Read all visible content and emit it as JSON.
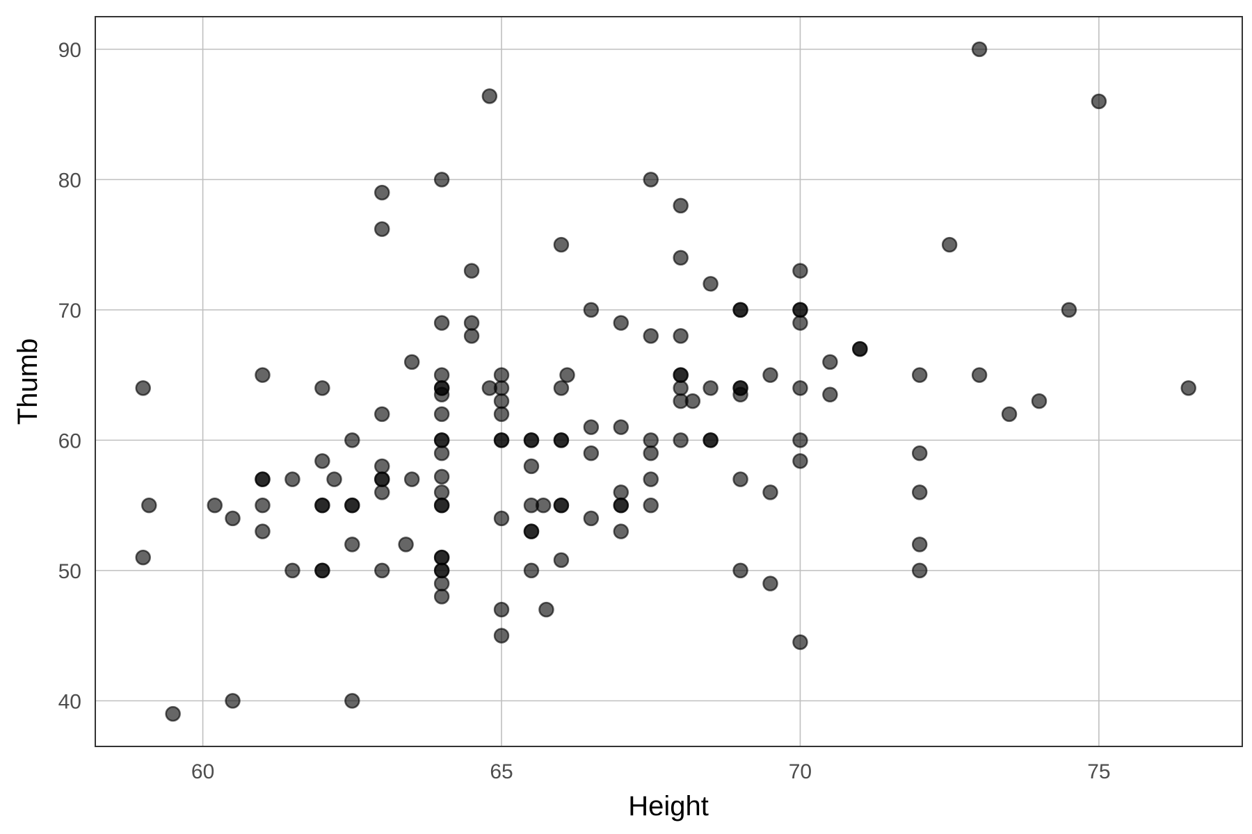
{
  "chart_data": {
    "type": "scatter",
    "xlabel": "Height",
    "ylabel": "Thumb",
    "xlim": [
      58.2,
      77.4
    ],
    "ylim": [
      36.5,
      92.5
    ],
    "xticks": [
      60,
      65,
      70,
      75
    ],
    "yticks": [
      40,
      50,
      60,
      70,
      80,
      90
    ],
    "x_tick_labels": [
      "60",
      "65",
      "70",
      "75"
    ],
    "y_tick_labels": [
      "40",
      "50",
      "60",
      "70",
      "80",
      "90"
    ],
    "grid": true,
    "legend": "none",
    "point_color": "#000000",
    "point_alpha": 0.6,
    "points": [
      [
        59,
        64
      ],
      [
        59,
        51
      ],
      [
        59.1,
        55
      ],
      [
        59.5,
        39
      ],
      [
        60.2,
        55
      ],
      [
        60.5,
        54
      ],
      [
        60.5,
        40
      ],
      [
        61,
        65
      ],
      [
        61,
        57
      ],
      [
        61,
        57
      ],
      [
        61,
        55
      ],
      [
        61,
        53
      ],
      [
        61.5,
        57
      ],
      [
        61.5,
        50
      ],
      [
        62,
        64
      ],
      [
        62,
        58.4
      ],
      [
        62,
        55
      ],
      [
        62,
        55
      ],
      [
        62,
        50
      ],
      [
        62,
        50
      ],
      [
        62.2,
        57
      ],
      [
        62.5,
        60
      ],
      [
        62.5,
        55
      ],
      [
        62.5,
        55
      ],
      [
        62.5,
        52
      ],
      [
        62.5,
        40
      ],
      [
        63,
        79
      ],
      [
        63,
        76.2
      ],
      [
        63,
        62
      ],
      [
        63,
        58
      ],
      [
        63,
        57
      ],
      [
        63,
        57
      ],
      [
        63,
        56
      ],
      [
        63,
        50
      ],
      [
        63.4,
        52
      ],
      [
        63.5,
        66
      ],
      [
        63.5,
        57
      ],
      [
        64,
        80
      ],
      [
        64,
        69
      ],
      [
        64,
        65
      ],
      [
        64,
        64
      ],
      [
        64,
        64
      ],
      [
        64,
        63.5
      ],
      [
        64,
        62
      ],
      [
        64,
        60
      ],
      [
        64,
        60
      ],
      [
        64,
        59
      ],
      [
        64,
        57.2
      ],
      [
        64,
        56
      ],
      [
        64,
        55
      ],
      [
        64,
        55
      ],
      [
        64,
        51
      ],
      [
        64,
        51
      ],
      [
        64,
        50
      ],
      [
        64,
        50
      ],
      [
        64,
        49
      ],
      [
        64,
        48
      ],
      [
        64.5,
        73
      ],
      [
        64.5,
        69
      ],
      [
        64.5,
        68
      ],
      [
        64.8,
        86.4
      ],
      [
        64.8,
        64
      ],
      [
        65,
        65
      ],
      [
        65,
        64
      ],
      [
        65,
        63
      ],
      [
        65,
        62
      ],
      [
        65,
        60
      ],
      [
        65,
        60
      ],
      [
        65,
        54
      ],
      [
        65,
        47
      ],
      [
        65,
        45
      ],
      [
        65.5,
        60
      ],
      [
        65.5,
        60
      ],
      [
        65.5,
        58
      ],
      [
        65.5,
        55
      ],
      [
        65.5,
        53
      ],
      [
        65.5,
        53
      ],
      [
        65.5,
        50
      ],
      [
        65.7,
        55
      ],
      [
        65.75,
        47
      ],
      [
        66,
        75
      ],
      [
        66,
        64
      ],
      [
        66,
        60
      ],
      [
        66,
        60
      ],
      [
        66,
        55
      ],
      [
        66,
        55
      ],
      [
        66,
        50.8
      ],
      [
        66.1,
        65
      ],
      [
        66.5,
        70
      ],
      [
        66.5,
        61
      ],
      [
        66.5,
        59
      ],
      [
        66.5,
        54
      ],
      [
        67,
        69
      ],
      [
        67,
        61
      ],
      [
        67,
        56
      ],
      [
        67,
        55
      ],
      [
        67,
        55
      ],
      [
        67,
        53
      ],
      [
        67.5,
        80
      ],
      [
        67.5,
        68
      ],
      [
        67.5,
        60
      ],
      [
        67.5,
        59
      ],
      [
        67.5,
        57
      ],
      [
        67.5,
        55
      ],
      [
        68,
        78
      ],
      [
        68,
        74
      ],
      [
        68,
        68
      ],
      [
        68,
        65
      ],
      [
        68,
        65
      ],
      [
        68,
        64
      ],
      [
        68,
        63
      ],
      [
        68,
        60
      ],
      [
        68.2,
        63
      ],
      [
        68.5,
        72
      ],
      [
        68.5,
        64
      ],
      [
        68.5,
        60
      ],
      [
        68.5,
        60
      ],
      [
        69,
        70
      ],
      [
        69,
        70
      ],
      [
        69,
        64
      ],
      [
        69,
        64
      ],
      [
        69,
        63.5
      ],
      [
        69,
        57
      ],
      [
        69,
        50
      ],
      [
        69.5,
        65
      ],
      [
        69.5,
        56
      ],
      [
        69.5,
        49
      ],
      [
        70,
        73
      ],
      [
        70,
        70
      ],
      [
        70,
        70
      ],
      [
        70,
        69
      ],
      [
        70,
        64
      ],
      [
        70,
        60
      ],
      [
        70,
        58.4
      ],
      [
        70,
        44.5
      ],
      [
        70.5,
        66
      ],
      [
        70.5,
        63.5
      ],
      [
        71,
        67
      ],
      [
        71,
        67
      ],
      [
        72,
        65
      ],
      [
        72,
        59
      ],
      [
        72,
        56
      ],
      [
        72,
        52
      ],
      [
        72,
        50
      ],
      [
        72.5,
        75
      ],
      [
        73,
        90
      ],
      [
        73,
        65
      ],
      [
        73.5,
        62
      ],
      [
        74,
        63
      ],
      [
        74.5,
        70
      ],
      [
        75,
        86
      ],
      [
        76.5,
        64
      ]
    ]
  }
}
